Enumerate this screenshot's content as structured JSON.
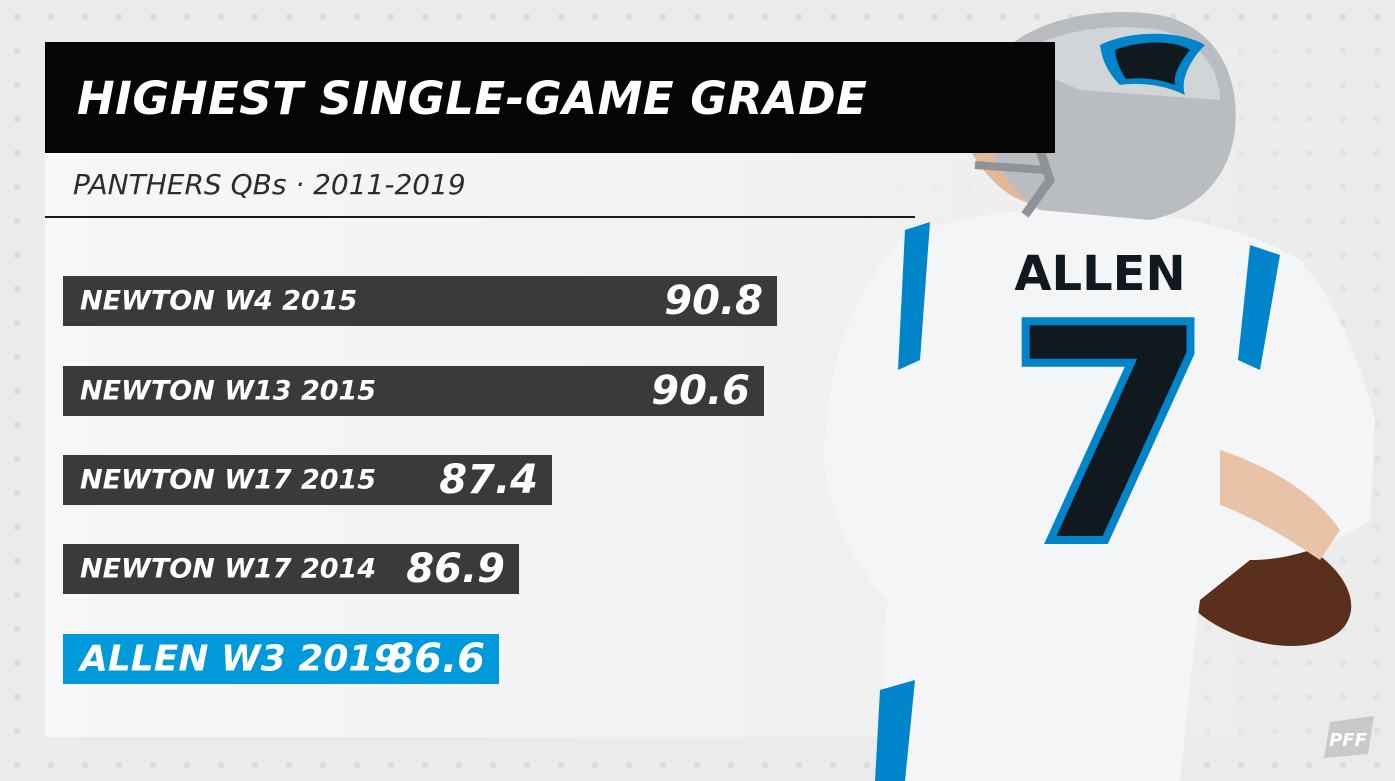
{
  "title": "HIGHEST SINGLE-GAME GRADE",
  "subtitle": "PANTHERS QBs · 2011-2019",
  "jersey": {
    "name": "ALLEN",
    "number": "7"
  },
  "logo_text": "PFF",
  "colors": {
    "bar_default": "#3a3a3a",
    "bar_highlight": "#0099da",
    "title_bg": "#050505",
    "panthers_blue": "#0085ca"
  },
  "icons": [
    "panthers-logo-icon",
    "pff-logo-icon"
  ],
  "chart_data": {
    "type": "bar",
    "orientation": "horizontal",
    "title": "HIGHEST SINGLE-GAME GRADE",
    "subtitle": "PANTHERS QBs · 2011-2019",
    "categories": [
      "NEWTON W4 2015",
      "NEWTON W13 2015",
      "NEWTON W17 2015",
      "NEWTON W17 2014",
      "ALLEN W3 2019"
    ],
    "values": [
      90.8,
      90.6,
      87.4,
      86.9,
      86.6
    ],
    "value_labels": [
      "90.8",
      "90.6",
      "87.4",
      "86.9",
      "86.6"
    ],
    "highlighted": [
      false,
      false,
      false,
      false,
      true
    ],
    "xlabel": "",
    "ylabel": "",
    "grid": false,
    "legend": "none"
  }
}
